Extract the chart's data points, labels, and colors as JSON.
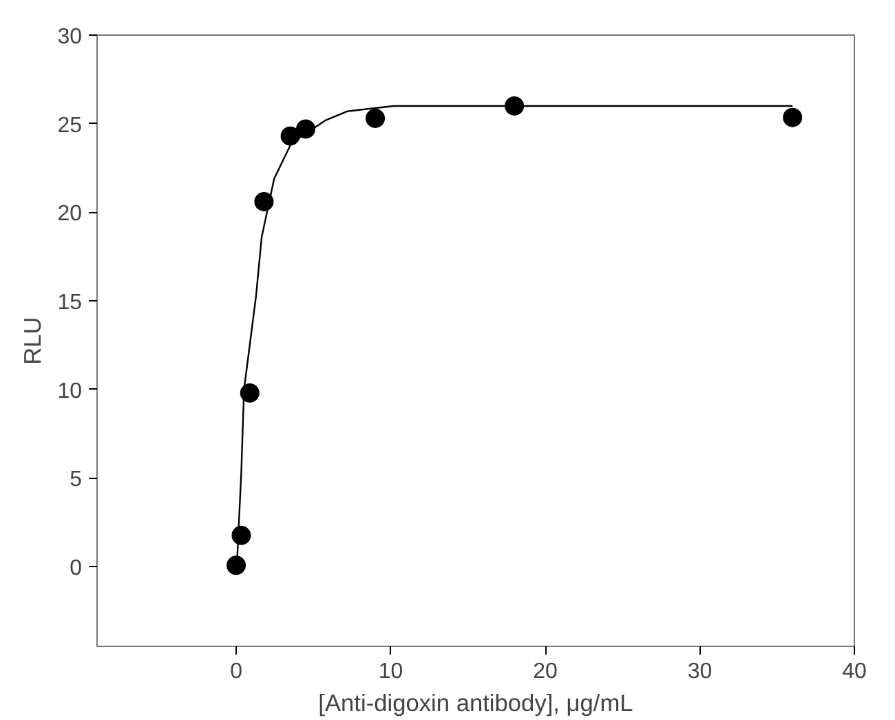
{
  "chart_data": {
    "type": "scatter",
    "xlabel": "[Anti-digoxin antibody], μg/mL",
    "ylabel": "RLU",
    "xlim": [
      -9,
      40
    ],
    "ylim": [
      -4.5,
      30
    ],
    "xticks": [
      0,
      10,
      20,
      30,
      40
    ],
    "yticks": [
      0,
      5,
      10,
      15,
      20,
      25,
      30
    ],
    "grid": false,
    "marker": "circle",
    "series": [
      {
        "color": "#000000",
        "x": [
          0,
          0.33,
          0.88,
          1.8,
          3.5,
          4.5,
          9,
          18,
          36
        ],
        "values": [
          0.07,
          1.76,
          9.8,
          20.6,
          24.3,
          24.7,
          25.3,
          26.0,
          25.35
        ]
      },
      {
        "type": "line",
        "marker": "none",
        "color": "#000000",
        "line_style": "solid",
        "x": [
          0.07,
          0.33,
          0.51,
          1.29,
          1.65,
          2.46,
          3.57,
          5.8,
          7.2,
          10.2,
          20,
          36
        ],
        "values": [
          0.5,
          5.3,
          10,
          15.3,
          18.6,
          21.9,
          23.9,
          25.2,
          25.7,
          26,
          26,
          26
        ]
      }
    ]
  }
}
